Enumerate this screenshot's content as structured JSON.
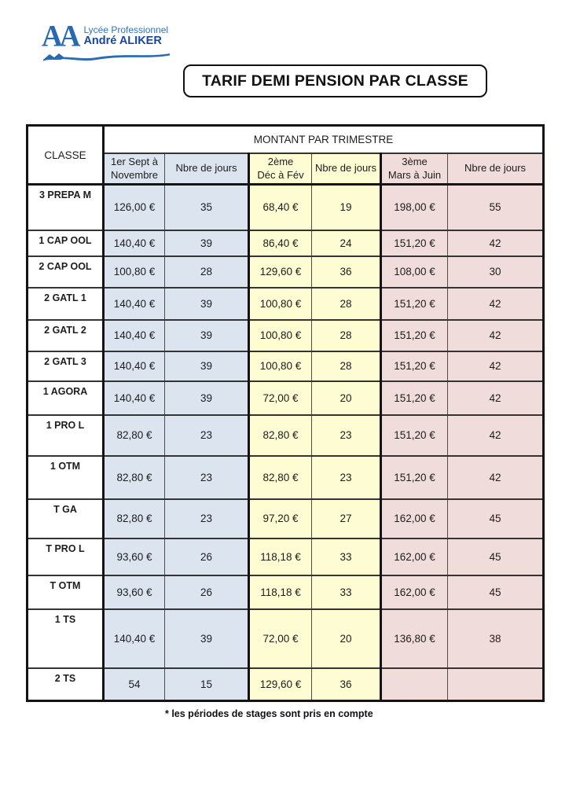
{
  "logo": {
    "monogram": "AA",
    "line1": "Lycée Professionnel",
    "line2": "André ALIKER"
  },
  "title": "TARIF DEMI PENSION PAR CLASSE",
  "table": {
    "classe_header": "CLASSE",
    "group_header": "MONTANT PAR TRIMESTRE",
    "columns": [
      {
        "line1": "1er  Sept à",
        "line2": "Novembre",
        "group": "t1"
      },
      {
        "line1": "Nbre de jours",
        "line2": "",
        "group": "t1"
      },
      {
        "line1": "2ème",
        "line2": "Déc à Fév",
        "group": "t2"
      },
      {
        "line1": "Nbre de jours",
        "line2": "",
        "group": "t2"
      },
      {
        "line1": "3ème",
        "line2": "Mars à Juin",
        "group": "t3"
      },
      {
        "line1": "Nbre de jours",
        "line2": "",
        "group": "t3"
      }
    ],
    "rows": [
      {
        "classe": "3 PREPA M",
        "cells": [
          "126,00 €",
          "35",
          "68,40 €",
          "19",
          "198,00 €",
          "55"
        ]
      },
      {
        "classe": "1 CAP OOL",
        "cells": [
          "140,40 €",
          "39",
          "86,40 €",
          "24",
          "151,20 €",
          "42"
        ]
      },
      {
        "classe": "2 CAP OOL",
        "cells": [
          "100,80 €",
          "28",
          "129,60 €",
          "36",
          "108,00 €",
          "30"
        ]
      },
      {
        "classe": "2 GATL 1",
        "cells": [
          "140,40 €",
          "39",
          "100,80 €",
          "28",
          "151,20 €",
          "42"
        ]
      },
      {
        "classe": "2 GATL 2",
        "cells": [
          "140,40 €",
          "39",
          "100,80 €",
          "28",
          "151,20 €",
          "42"
        ]
      },
      {
        "classe": "2 GATL 3",
        "cells": [
          "140,40 €",
          "39",
          "100,80 €",
          "28",
          "151,20 €",
          "42"
        ]
      },
      {
        "classe": "1 AGORA",
        "cells": [
          "140,40 €",
          "39",
          "72,00 €",
          "20",
          "151,20 €",
          "42"
        ]
      },
      {
        "classe": "1 PRO L",
        "cells": [
          "82,80 €",
          "23",
          "82,80 €",
          "23",
          "151,20 €",
          "42"
        ]
      },
      {
        "classe": "1 OTM",
        "cells": [
          "82,80 €",
          "23",
          "82,80 €",
          "23",
          "151,20 €",
          "42"
        ]
      },
      {
        "classe": "T GA",
        "cells": [
          "82,80 €",
          "23",
          "97,20 €",
          "27",
          "162,00 €",
          "45"
        ]
      },
      {
        "classe": "T PRO L",
        "cells": [
          "93,60 €",
          "26",
          "118,18 €",
          "33",
          "162,00 €",
          "45"
        ]
      },
      {
        "classe": "T OTM",
        "cells": [
          "93,60 €",
          "26",
          "118,18 €",
          "33",
          "162,00 €",
          "45"
        ]
      },
      {
        "classe": "1 TS",
        "cells": [
          "140,40 €",
          "39",
          "72,00 €",
          "20",
          "136,80 €",
          "38"
        ]
      },
      {
        "classe": "2 TS",
        "cells": [
          "54",
          "15",
          "129,60 €",
          "36",
          "",
          ""
        ]
      }
    ]
  },
  "footnote": "* les périodes de stages sont pris en compte",
  "colors": {
    "trimestre1": "#dce4f0",
    "trimestre2": "#fdfcd2",
    "trimestre3": "#f0dcdb",
    "logo_blue": "#2769b2",
    "logo_dark_blue": "#17479e"
  }
}
